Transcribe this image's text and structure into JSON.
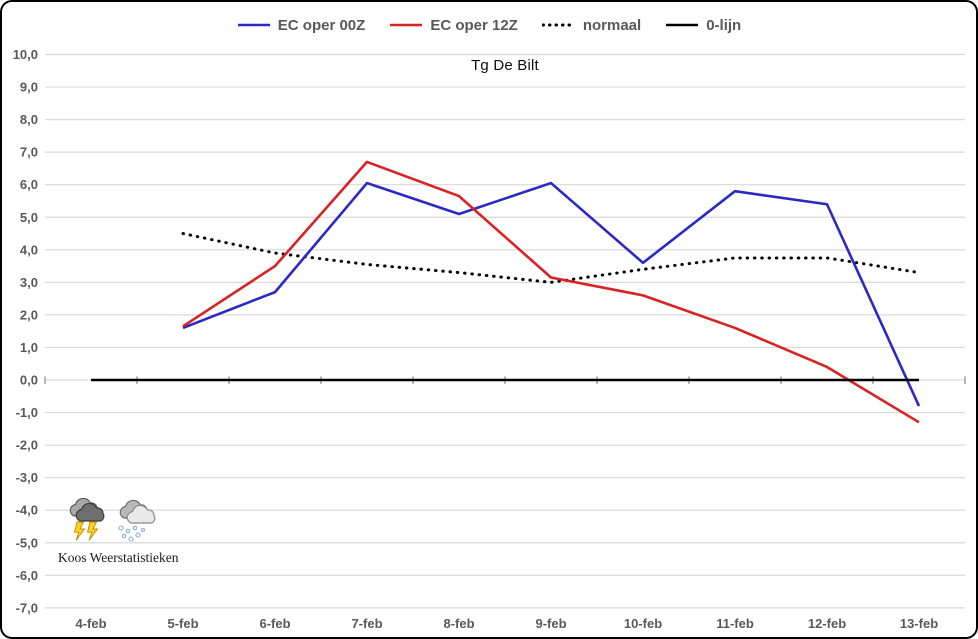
{
  "title": "Tg De Bilt",
  "legend": {
    "items": [
      {
        "label": "EC oper 00Z",
        "color": "#2929c6",
        "style": "solid"
      },
      {
        "label": "EC oper 12Z",
        "color": "#d92222",
        "style": "solid"
      },
      {
        "label": "normaal",
        "color": "#000000",
        "style": "dotted"
      },
      {
        "label": "0-lijn",
        "color": "#000000",
        "style": "solid"
      }
    ]
  },
  "watermark": {
    "text": "Koos Weerstatistieken",
    "icons": [
      "storm-cloud-icon",
      "snow-cloud-icon"
    ]
  },
  "chart_data": {
    "type": "line",
    "title": "Tg De Bilt",
    "categories": [
      "4-feb",
      "5-feb",
      "6-feb",
      "7-feb",
      "8-feb",
      "9-feb",
      "10-feb",
      "11-feb",
      "12-feb",
      "13-feb"
    ],
    "series": [
      {
        "name": "EC oper 00Z",
        "color": "#2929c6",
        "style": "solid",
        "values": [
          null,
          1.6,
          2.7,
          6.05,
          5.1,
          6.05,
          3.6,
          5.8,
          5.4,
          -0.8
        ]
      },
      {
        "name": "EC oper 12Z",
        "color": "#d92222",
        "style": "solid",
        "values": [
          null,
          1.65,
          3.5,
          6.7,
          5.65,
          3.15,
          2.6,
          1.6,
          0.4,
          -1.3
        ]
      },
      {
        "name": "normaal",
        "color": "#000000",
        "style": "dotted",
        "values": [
          null,
          4.5,
          3.9,
          3.55,
          3.3,
          3.0,
          3.4,
          3.75,
          3.75,
          3.3
        ]
      },
      {
        "name": "0-lijn",
        "color": "#000000",
        "style": "solid",
        "values": [
          0,
          0,
          0,
          0,
          0,
          0,
          0,
          0,
          0,
          0
        ]
      }
    ],
    "ylim": [
      -7,
      10
    ],
    "ytick_step": 1,
    "decimal_separator": ",",
    "grid": true,
    "gridline_color": "#d9d9d9",
    "axis_label_color": "#595959",
    "legend_position": "top"
  }
}
